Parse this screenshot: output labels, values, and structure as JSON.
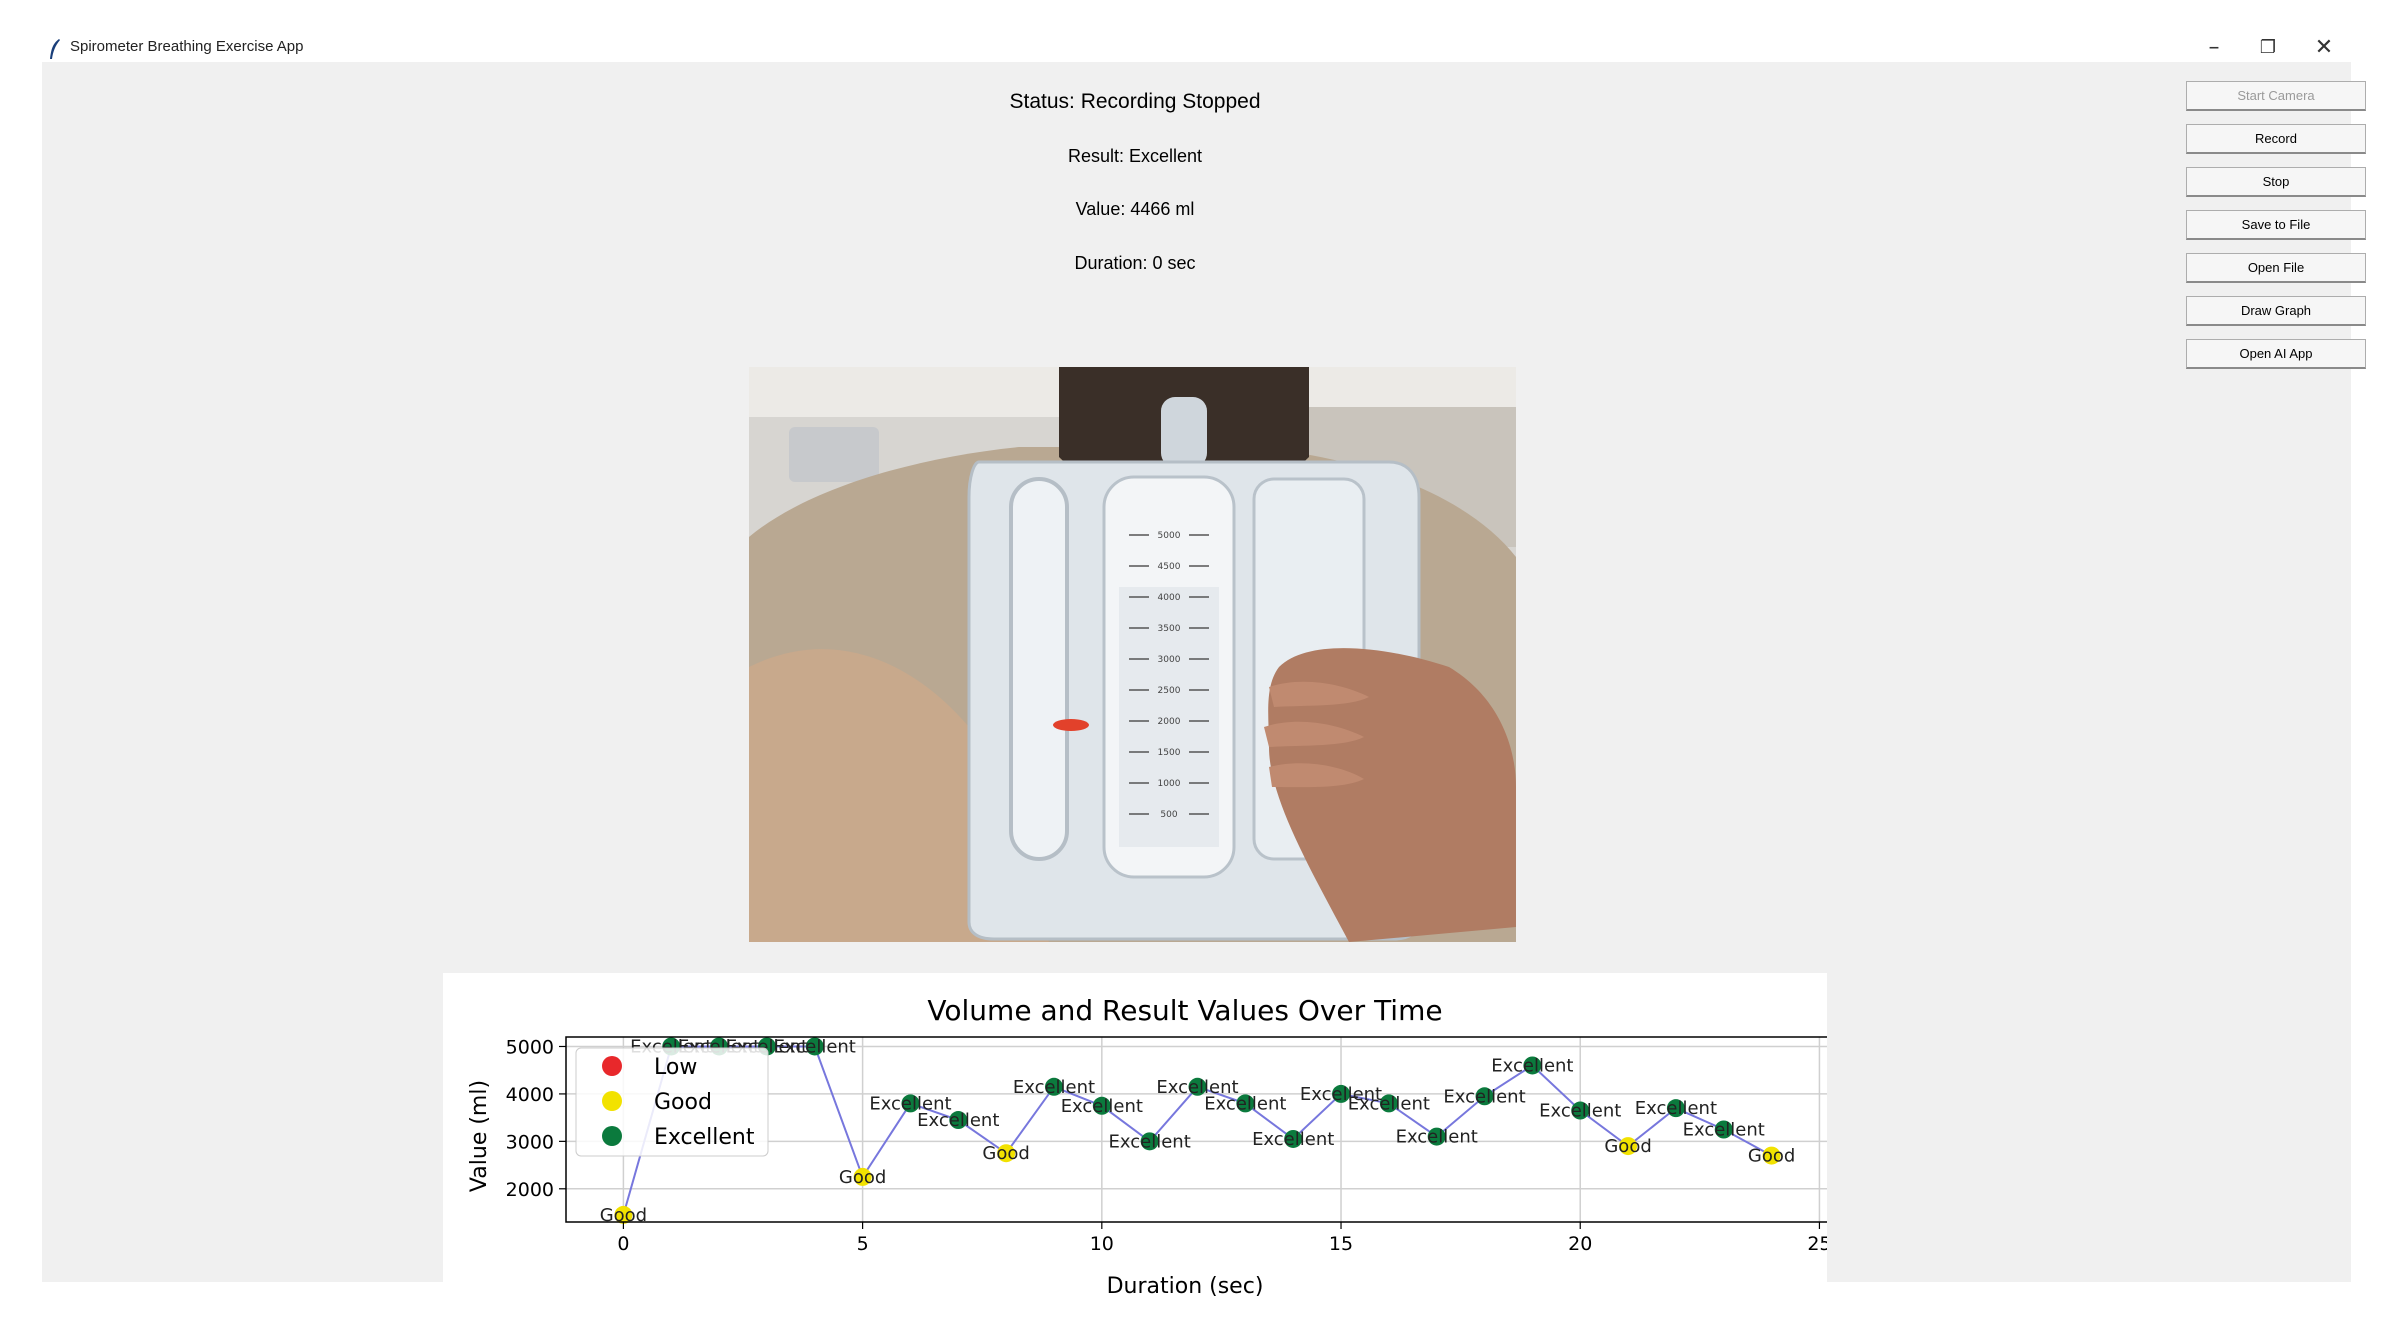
{
  "window": {
    "title": "Spirometer Breathing Exercise App",
    "controls": {
      "minimize": "–",
      "restore": "❐",
      "close": "✕"
    }
  },
  "status": {
    "status_text": "Status: Recording Stopped",
    "result_text": "Result: Excellent",
    "value_text": "Value: 4466 ml",
    "duration_text": "Duration: 0 sec"
  },
  "toolbar": {
    "start_camera": "Start Camera",
    "record": "Record",
    "stop": "Stop",
    "save_to_file": "Save to File",
    "open_file": "Open File",
    "draw_graph": "Draw Graph",
    "open_ai_app": "Open AI App"
  },
  "camera": {
    "scale_labels": [
      "5000",
      "4500",
      "4000",
      "3500",
      "3000",
      "2500",
      "2000",
      "1500",
      "1000",
      "500"
    ]
  },
  "colors": {
    "low": "#e8282b",
    "good": "#f2e200",
    "excellent": "#0b7a3d",
    "line": "#7777dd"
  },
  "chart_data": {
    "type": "scatter",
    "title": "Volume and Result Values Over Time",
    "xlabel": "Duration (sec)",
    "ylabel": "Value (ml)",
    "xlim": [
      -1.2,
      25.2
    ],
    "ylim": [
      1300,
      5200
    ],
    "xticks": [
      0,
      5,
      10,
      15,
      20,
      25
    ],
    "yticks": [
      2000,
      3000,
      4000,
      5000
    ],
    "grid": true,
    "legend_position": "upper-left",
    "legend": [
      "Low",
      "Good",
      "Excellent"
    ],
    "x": [
      0,
      1,
      2,
      3,
      4,
      5,
      6,
      7,
      8,
      9,
      10,
      11,
      12,
      13,
      14,
      15,
      16,
      17,
      18,
      19,
      20,
      21,
      22,
      23,
      24
    ],
    "y": [
      1450,
      5000,
      5000,
      5000,
      5000,
      2250,
      3800,
      3450,
      2750,
      4150,
      3750,
      3000,
      4150,
      3800,
      3050,
      4000,
      3800,
      3100,
      3950,
      4600,
      3650,
      2900,
      3700,
      3250,
      2700
    ],
    "labels": [
      "Good",
      "Excellent",
      "Excellent",
      "Excellent",
      "Excellent",
      "Good",
      "Excellent",
      "Excellent",
      "Good",
      "Excellent",
      "Excellent",
      "Excellent",
      "Excellent",
      "Excellent",
      "Excellent",
      "Excellent",
      "Excellent",
      "Excellent",
      "Excellent",
      "Excellent",
      "Excellent",
      "Good",
      "Excellent",
      "Excellent",
      "Good"
    ]
  }
}
